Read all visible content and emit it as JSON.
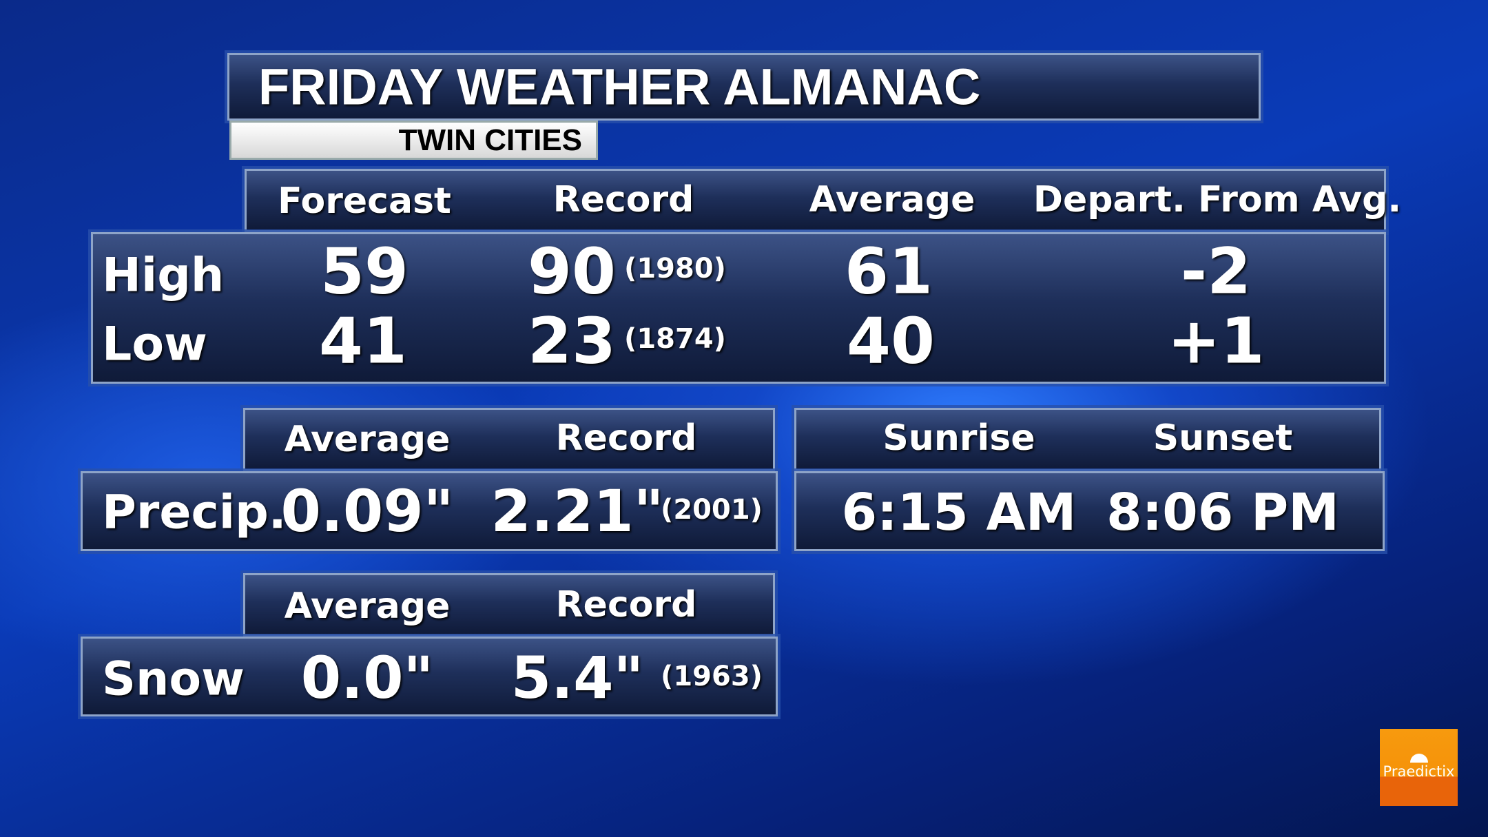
{
  "title": "FRIDAY WEATHER ALMANAC",
  "location": "TWIN CITIES",
  "temps": {
    "headers": [
      "Forecast",
      "Record",
      "Average",
      "Depart. From Avg."
    ],
    "rows": [
      {
        "label": "High",
        "forecast": "59",
        "record": "90",
        "record_year": "(1980)",
        "average": "61",
        "departure": "-2"
      },
      {
        "label": "Low",
        "forecast": "41",
        "record": "23",
        "record_year": "(1874)",
        "average": "40",
        "departure": "+1"
      }
    ]
  },
  "precip": {
    "headers": [
      "Average",
      "Record"
    ],
    "label": "Precip.",
    "average": "0.09\"",
    "record": "2.21\"",
    "record_year": "(2001)"
  },
  "sun": {
    "headers": [
      "Sunrise",
      "Sunset"
    ],
    "sunrise": "6:15 AM",
    "sunset": "8:06 PM"
  },
  "snow": {
    "headers": [
      "Average",
      "Record"
    ],
    "label": "Snow",
    "average": "0.0\"",
    "record": "5.4\"",
    "record_year": "(1963)"
  },
  "logo": {
    "text": "Praedictix",
    "icon": "umbrella-icon",
    "colors": [
      "#f79a0e",
      "#e8640a"
    ]
  }
}
